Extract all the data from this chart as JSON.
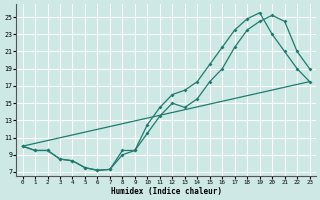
{
  "xlabel": "Humidex (Indice chaleur)",
  "bg_color": "#cde8e5",
  "grid_color": "#ffffff",
  "line_color": "#1e7b6e",
  "xlim": [
    -0.5,
    23.5
  ],
  "ylim": [
    6.5,
    26.5
  ],
  "xticks": [
    0,
    1,
    2,
    3,
    4,
    5,
    6,
    7,
    8,
    9,
    10,
    11,
    12,
    13,
    14,
    15,
    16,
    17,
    18,
    19,
    20,
    21,
    22,
    23
  ],
  "yticks": [
    7,
    9,
    11,
    13,
    15,
    17,
    19,
    21,
    23,
    25
  ],
  "curve1_x": [
    0,
    1,
    2,
    3,
    4,
    5,
    6,
    7,
    8,
    9,
    10,
    11,
    12,
    13,
    14,
    15,
    16,
    17,
    18,
    19,
    20,
    21,
    22,
    23
  ],
  "curve1_y": [
    10,
    9.5,
    9.5,
    8.5,
    8.3,
    7.5,
    7.2,
    7.3,
    9.5,
    9.5,
    12.5,
    14.5,
    16,
    16.5,
    17.5,
    19.5,
    21.5,
    23.5,
    24.8,
    25.5,
    23,
    21,
    19,
    17.5
  ],
  "curve2_x": [
    0,
    1,
    2,
    3,
    4,
    5,
    6,
    7,
    8,
    9,
    10,
    11,
    12,
    13,
    14,
    15,
    16,
    17,
    18,
    19,
    20,
    21,
    22,
    23
  ],
  "curve2_y": [
    10,
    9.5,
    9.5,
    8.5,
    8.3,
    7.5,
    7.2,
    7.3,
    9.0,
    9.5,
    11.5,
    13.5,
    15,
    14.5,
    15.5,
    17.5,
    19,
    21.5,
    23.5,
    24.5,
    25.2,
    24.5,
    21,
    19
  ],
  "curve3_x": [
    0,
    23
  ],
  "curve3_y": [
    10,
    17.5
  ]
}
